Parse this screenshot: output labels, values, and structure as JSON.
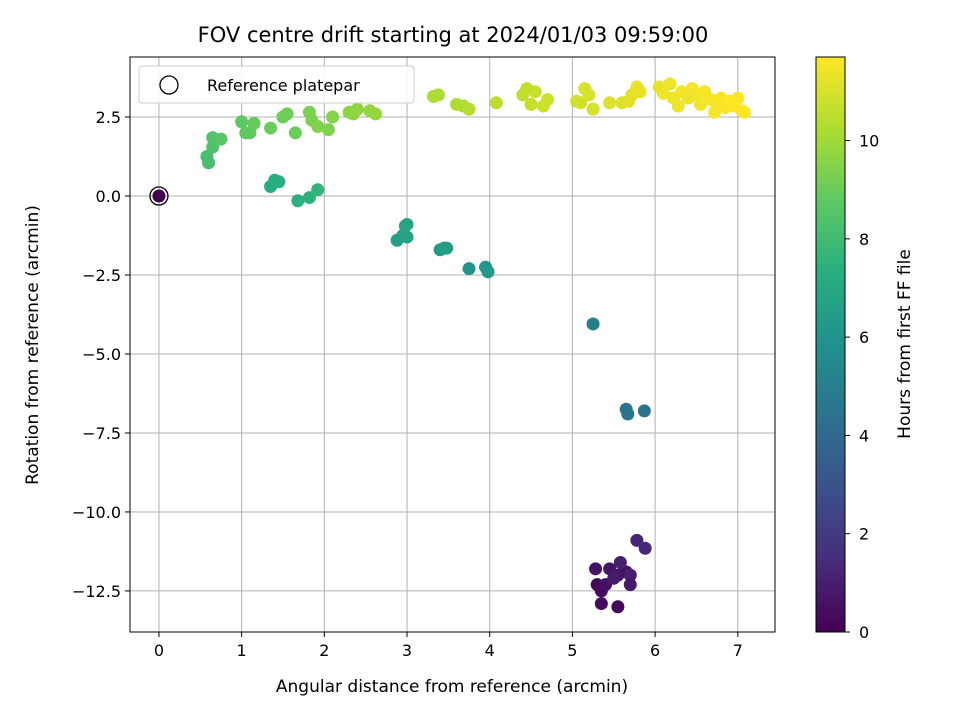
{
  "chart_data": {
    "type": "scatter",
    "title": "FOV centre drift starting at 2024/01/03 09:59:00",
    "xlabel": "Angular distance from reference (arcmin)",
    "ylabel": "Rotation from reference (arcmin)",
    "colorbar_label": "Hours from first FF file",
    "colormap": "viridis",
    "xlim": [
      -0.35,
      7.45
    ],
    "ylim": [
      -13.8,
      4.4
    ],
    "clim": [
      0,
      11.7
    ],
    "xticks": [
      "0",
      "1",
      "2",
      "3",
      "4",
      "5",
      "6",
      "7"
    ],
    "yticks": [
      "2.5",
      "0.0",
      "−2.5",
      "−5.0",
      "−7.5",
      "−10.0",
      "−12.5"
    ],
    "colorbar_ticks": [
      "0",
      "2",
      "4",
      "6",
      "8",
      "10"
    ],
    "grid": true,
    "legend": {
      "position": "upper-left",
      "label": "Reference platepar",
      "marker": "open-circle"
    },
    "reference_point": {
      "x": 0.0,
      "y": 0.0,
      "c": 0.0
    },
    "points": [
      {
        "x": 5.3,
        "y": -12.3,
        "c": 0.2
      },
      {
        "x": 5.35,
        "y": -12.9,
        "c": 0.3
      },
      {
        "x": 5.55,
        "y": -13.0,
        "c": 0.1
      },
      {
        "x": 5.35,
        "y": -12.5,
        "c": 0.4
      },
      {
        "x": 5.4,
        "y": -12.3,
        "c": 0.5
      },
      {
        "x": 5.28,
        "y": -11.8,
        "c": 0.6
      },
      {
        "x": 5.45,
        "y": -11.8,
        "c": 0.7
      },
      {
        "x": 5.55,
        "y": -12.0,
        "c": 0.8
      },
      {
        "x": 5.65,
        "y": -11.9,
        "c": 0.6
      },
      {
        "x": 5.5,
        "y": -12.1,
        "c": 0.9
      },
      {
        "x": 5.58,
        "y": -11.6,
        "c": 1.0
      },
      {
        "x": 5.7,
        "y": -12.0,
        "c": 1.0
      },
      {
        "x": 5.7,
        "y": -12.3,
        "c": 0.8
      },
      {
        "x": 5.78,
        "y": -10.9,
        "c": 1.2
      },
      {
        "x": 5.88,
        "y": -11.15,
        "c": 1.3
      },
      {
        "x": 5.25,
        "y": -4.05,
        "c": 5.0
      },
      {
        "x": 5.65,
        "y": -6.75,
        "c": 4.4
      },
      {
        "x": 5.67,
        "y": -6.9,
        "c": 4.5
      },
      {
        "x": 5.87,
        "y": -6.8,
        "c": 4.5
      },
      {
        "x": 3.75,
        "y": -2.3,
        "c": 6.0
      },
      {
        "x": 3.95,
        "y": -2.25,
        "c": 6.1
      },
      {
        "x": 3.98,
        "y": -2.4,
        "c": 6.2
      },
      {
        "x": 3.4,
        "y": -1.7,
        "c": 6.3
      },
      {
        "x": 3.45,
        "y": -1.65,
        "c": 6.4
      },
      {
        "x": 3.48,
        "y": -1.65,
        "c": 6.4
      },
      {
        "x": 2.88,
        "y": -1.4,
        "c": 6.6
      },
      {
        "x": 2.95,
        "y": -1.25,
        "c": 6.7
      },
      {
        "x": 3.0,
        "y": -1.3,
        "c": 6.7
      },
      {
        "x": 2.98,
        "y": -0.95,
        "c": 6.8
      },
      {
        "x": 3.0,
        "y": -0.9,
        "c": 6.8
      },
      {
        "x": 1.35,
        "y": 0.3,
        "c": 7.2
      },
      {
        "x": 1.4,
        "y": 0.5,
        "c": 7.3
      },
      {
        "x": 1.45,
        "y": 0.45,
        "c": 7.3
      },
      {
        "x": 1.68,
        "y": -0.15,
        "c": 7.4
      },
      {
        "x": 1.82,
        "y": -0.05,
        "c": 7.5
      },
      {
        "x": 1.92,
        "y": 0.2,
        "c": 7.6
      },
      {
        "x": 0.58,
        "y": 1.25,
        "c": 8.2
      },
      {
        "x": 0.6,
        "y": 1.05,
        "c": 8.2
      },
      {
        "x": 0.65,
        "y": 1.55,
        "c": 8.4
      },
      {
        "x": 0.65,
        "y": 1.85,
        "c": 8.5
      },
      {
        "x": 0.75,
        "y": 1.8,
        "c": 8.6
      },
      {
        "x": 1.0,
        "y": 2.35,
        "c": 8.7
      },
      {
        "x": 1.05,
        "y": 2.0,
        "c": 8.8
      },
      {
        "x": 1.1,
        "y": 2.0,
        "c": 8.8
      },
      {
        "x": 1.15,
        "y": 2.3,
        "c": 8.9
      },
      {
        "x": 1.35,
        "y": 2.15,
        "c": 9.0
      },
      {
        "x": 1.5,
        "y": 2.5,
        "c": 9.0
      },
      {
        "x": 1.55,
        "y": 2.6,
        "c": 9.1
      },
      {
        "x": 1.65,
        "y": 2.0,
        "c": 9.0
      },
      {
        "x": 1.82,
        "y": 2.65,
        "c": 9.3
      },
      {
        "x": 1.85,
        "y": 2.4,
        "c": 9.3
      },
      {
        "x": 1.92,
        "y": 2.2,
        "c": 9.4
      },
      {
        "x": 2.05,
        "y": 2.1,
        "c": 9.4
      },
      {
        "x": 2.1,
        "y": 2.5,
        "c": 9.5
      },
      {
        "x": 2.3,
        "y": 2.65,
        "c": 9.6
      },
      {
        "x": 2.35,
        "y": 2.6,
        "c": 9.6
      },
      {
        "x": 2.4,
        "y": 2.75,
        "c": 9.7
      },
      {
        "x": 2.55,
        "y": 2.7,
        "c": 9.8
      },
      {
        "x": 2.62,
        "y": 2.6,
        "c": 9.8
      },
      {
        "x": 3.32,
        "y": 3.15,
        "c": 10.2
      },
      {
        "x": 3.38,
        "y": 3.2,
        "c": 10.2
      },
      {
        "x": 3.6,
        "y": 2.9,
        "c": 10.3
      },
      {
        "x": 3.68,
        "y": 2.85,
        "c": 10.3
      },
      {
        "x": 3.75,
        "y": 2.75,
        "c": 10.4
      },
      {
        "x": 4.08,
        "y": 2.95,
        "c": 10.5
      },
      {
        "x": 4.4,
        "y": 3.2,
        "c": 10.6
      },
      {
        "x": 4.45,
        "y": 3.4,
        "c": 10.6
      },
      {
        "x": 4.5,
        "y": 2.9,
        "c": 10.7
      },
      {
        "x": 4.55,
        "y": 3.3,
        "c": 10.7
      },
      {
        "x": 4.65,
        "y": 2.85,
        "c": 10.8
      },
      {
        "x": 4.7,
        "y": 3.05,
        "c": 10.8
      },
      {
        "x": 5.05,
        "y": 3.0,
        "c": 10.9
      },
      {
        "x": 5.1,
        "y": 2.95,
        "c": 10.9
      },
      {
        "x": 5.15,
        "y": 3.4,
        "c": 11.0
      },
      {
        "x": 5.2,
        "y": 3.2,
        "c": 11.0
      },
      {
        "x": 5.25,
        "y": 2.75,
        "c": 11.0
      },
      {
        "x": 5.45,
        "y": 2.95,
        "c": 11.1
      },
      {
        "x": 5.6,
        "y": 2.95,
        "c": 11.1
      },
      {
        "x": 5.68,
        "y": 3.0,
        "c": 11.2
      },
      {
        "x": 5.72,
        "y": 3.2,
        "c": 11.2
      },
      {
        "x": 5.78,
        "y": 3.45,
        "c": 11.3
      },
      {
        "x": 5.82,
        "y": 3.3,
        "c": 11.3
      },
      {
        "x": 6.05,
        "y": 3.45,
        "c": 11.3
      },
      {
        "x": 6.1,
        "y": 3.25,
        "c": 11.4
      },
      {
        "x": 6.18,
        "y": 3.55,
        "c": 11.4
      },
      {
        "x": 6.22,
        "y": 3.1,
        "c": 11.4
      },
      {
        "x": 6.28,
        "y": 2.85,
        "c": 11.4
      },
      {
        "x": 6.32,
        "y": 3.3,
        "c": 11.5
      },
      {
        "x": 6.4,
        "y": 3.1,
        "c": 11.5
      },
      {
        "x": 6.45,
        "y": 3.4,
        "c": 11.5
      },
      {
        "x": 6.5,
        "y": 3.2,
        "c": 11.5
      },
      {
        "x": 6.55,
        "y": 2.9,
        "c": 11.5
      },
      {
        "x": 6.6,
        "y": 3.3,
        "c": 11.6
      },
      {
        "x": 6.68,
        "y": 3.05,
        "c": 11.6
      },
      {
        "x": 6.72,
        "y": 2.65,
        "c": 11.6
      },
      {
        "x": 6.75,
        "y": 2.9,
        "c": 11.6
      },
      {
        "x": 6.8,
        "y": 3.1,
        "c": 11.6
      },
      {
        "x": 6.85,
        "y": 2.8,
        "c": 11.6
      },
      {
        "x": 6.9,
        "y": 3.0,
        "c": 11.7
      },
      {
        "x": 6.95,
        "y": 2.85,
        "c": 11.7
      },
      {
        "x": 7.0,
        "y": 3.1,
        "c": 11.7
      },
      {
        "x": 7.05,
        "y": 2.7,
        "c": 11.7
      },
      {
        "x": 7.08,
        "y": 2.65,
        "c": 11.7
      }
    ]
  }
}
